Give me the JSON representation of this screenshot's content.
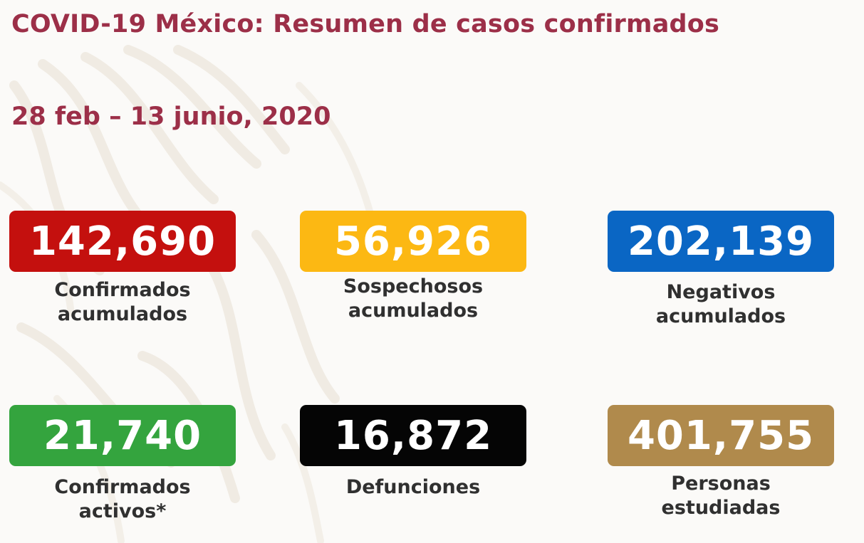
{
  "header": {
    "title": "COVID-19 México: Resumen de casos confirmados",
    "date_range": "28 feb – 13 junio, 2020"
  },
  "stats": [
    {
      "value": "142,690",
      "label_line1": "Confirmados",
      "label_line2": "acumulados",
      "color": "#c4100e"
    },
    {
      "value": "56,926",
      "label_line1": "Sospechosos",
      "label_line2": "acumulados",
      "color": "#fcb813"
    },
    {
      "value": "202,139",
      "label_line1": "Negativos",
      "label_line2": "acumulados",
      "color": "#0a66c4"
    },
    {
      "value": "21,740",
      "label_line1": "Confirmados",
      "label_line2": "activos*",
      "color": "#34a43e"
    },
    {
      "value": "16,872",
      "label_line1": "Defunciones",
      "label_line2": "",
      "color": "#050505"
    },
    {
      "value": "401,755",
      "label_line1": "Personas",
      "label_line2": "estudiadas",
      "color": "#b08a4c"
    }
  ]
}
